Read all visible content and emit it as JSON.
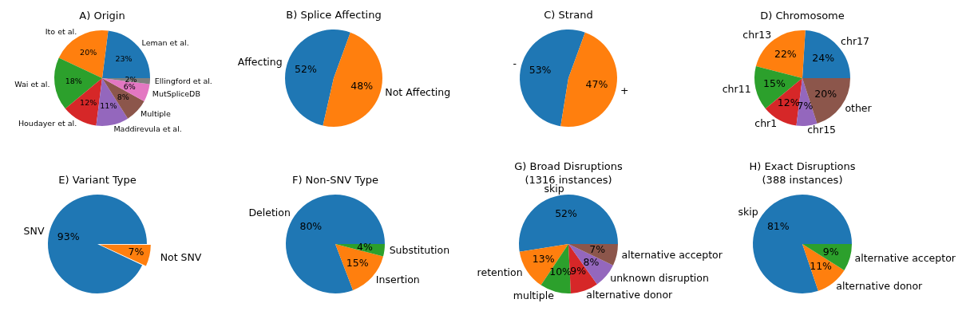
{
  "chart_data": [
    {
      "type": "pie",
      "title": "A) Origin",
      "categories": [
        "Leman et al.",
        "Ito et al.",
        "Wai et al.",
        "Houdayer et al.",
        "Maddirevula et al.",
        "Multiple",
        "MutSpliceDB",
        "Ellingford et al."
      ],
      "values": [
        23,
        20,
        18,
        12,
        11,
        8,
        6,
        2
      ],
      "value_labels": [
        "23%",
        "20%",
        "18%",
        "12%",
        "11%",
        "8%",
        "6%",
        "2%"
      ],
      "colors": [
        "#1f77b4",
        "#ff7f0e",
        "#2ca02c",
        "#d62728",
        "#9467bd",
        "#8c564b",
        "#e377c2",
        "#7f7f7f"
      ],
      "data_labels": true
    },
    {
      "type": "pie",
      "title": "B) Splice Affecting",
      "categories": [
        "Affecting",
        "Not Affecting"
      ],
      "values": [
        52,
        48
      ],
      "value_labels": [
        "52%",
        "48%"
      ],
      "colors": [
        "#1f77b4",
        "#ff7f0e"
      ],
      "data_labels": true
    },
    {
      "type": "pie",
      "title": "C) Strand",
      "categories": [
        "-",
        "+"
      ],
      "values": [
        53,
        47
      ],
      "value_labels": [
        "53%",
        "47%"
      ],
      "colors": [
        "#1f77b4",
        "#ff7f0e"
      ],
      "data_labels": true
    },
    {
      "type": "pie",
      "title": "D) Chromosome",
      "categories": [
        "chr17",
        "chr13",
        "chr11",
        "chr1",
        "chr15",
        "other"
      ],
      "values": [
        24,
        22,
        15,
        12,
        7,
        20
      ],
      "value_labels": [
        "24%",
        "22%",
        "15%",
        "12%",
        "7%",
        "20%"
      ],
      "colors": [
        "#1f77b4",
        "#ff7f0e",
        "#2ca02c",
        "#d62728",
        "#9467bd",
        "#8c564b"
      ],
      "data_labels": true
    },
    {
      "type": "pie",
      "title": "E) Variant Type",
      "categories": [
        "SNV",
        "Not SNV"
      ],
      "values": [
        93,
        7
      ],
      "value_labels": [
        "93%",
        "7%"
      ],
      "colors": [
        "#1f77b4",
        "#ff7f0e"
      ],
      "data_labels": true
    },
    {
      "type": "pie",
      "title": "F) Non-SNV Type",
      "categories": [
        "Deletion",
        "Insertion",
        "Substitution"
      ],
      "values": [
        80,
        15,
        4
      ],
      "value_labels": [
        "80%",
        "15%",
        "4%"
      ],
      "colors": [
        "#1f77b4",
        "#ff7f0e",
        "#2ca02c"
      ],
      "data_labels": true
    },
    {
      "type": "pie",
      "title": "G) Broad Disruptions",
      "subtitle": "(1316 instances)",
      "categories": [
        "skip",
        "retention",
        "multiple",
        "alternative donor",
        "unknown disruption",
        "alternative acceptor"
      ],
      "values": [
        52,
        13,
        10,
        9,
        8,
        7
      ],
      "value_labels": [
        "52%",
        "13%",
        "10%",
        "9%",
        "8%",
        "7%"
      ],
      "colors": [
        "#1f77b4",
        "#ff7f0e",
        "#2ca02c",
        "#d62728",
        "#9467bd",
        "#8c564b"
      ],
      "data_labels": true
    },
    {
      "type": "pie",
      "title": "H) Exact Disruptions",
      "subtitle": "(388 instances)",
      "categories": [
        "skip",
        "alternative donor",
        "alternative acceptor"
      ],
      "values": [
        81,
        11,
        9
      ],
      "value_labels": [
        "81%",
        "11%",
        "9%"
      ],
      "colors": [
        "#1f77b4",
        "#ff7f0e",
        "#2ca02c"
      ],
      "data_labels": true
    }
  ]
}
